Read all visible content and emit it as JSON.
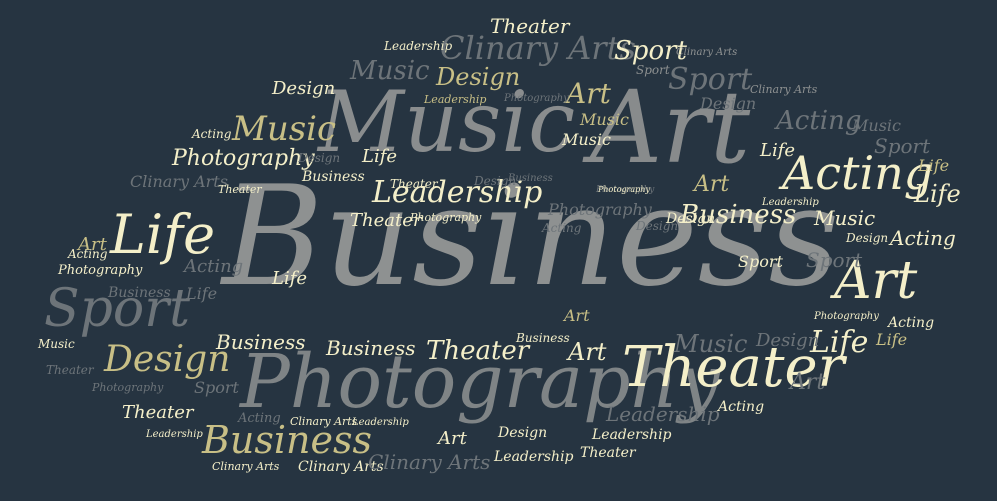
{
  "colors": {
    "background": "#263441",
    "cream": "#f4efc9",
    "khaki": "#c8bf86",
    "gray": "#8e9191",
    "darkgray": "#6d7479",
    "tan": "#a59f7c"
  },
  "words": {
    "business_main": "Business",
    "music_big": "Music",
    "art_big": "Art",
    "photography_big": "Photography",
    "theater_big": "Theater",
    "acting_big": "Acting",
    "life_big": "Life",
    "sport_big": "Sport",
    "art_right": "Art",
    "business_bottom": "Business",
    "design_left": "Design",
    "music_left": "Music",
    "photography_left": "Photography",
    "leadership_mid": "Leadership",
    "clinary_top": "Clinary Arts",
    "sport_top": "Sport",
    "sport_top2": "Sport",
    "theater_top": "Theater",
    "design_top": "Design",
    "music_top": "Music",
    "design_top2": "Design",
    "art_top": "Art",
    "music_top2": "Music",
    "acting_right_top": "Acting",
    "music_right": "Music",
    "sport_right": "Sport",
    "life_right": "Life",
    "life_right2": "Life",
    "business_right": "Business",
    "music_right2": "Music",
    "acting_right2": "Acting",
    "design_right": "Design",
    "sport_right2": "Sport",
    "sport_right3": "Sport",
    "life_right3": "Life",
    "acting_right3": "Acting",
    "life_right4": "Life",
    "design_right2": "Design",
    "music_lower": "Music",
    "art_lower": "Art",
    "acting_lower": "Acting",
    "leadership_lower": "Leadership",
    "leadership_lower2": "Leadership",
    "design_lower": "Design",
    "leadership_lower3": "Leadership",
    "theater_lower": "Theater",
    "clinary_lower": "Clinary Arts",
    "clinary_lower2": "Clinary Arts",
    "clinary_lower3": "Clinary Arts",
    "art_bottom": "Art",
    "theater_left": "Theater",
    "design_left2": "Design",
    "sport_left2": "Sport",
    "acting_left": "Acting",
    "leadership_left": "Leadership",
    "acting_left2": "Acting",
    "theater_left2": "Theater",
    "music_left2": "Music",
    "photography_left2": "Photography",
    "business_left": "Business",
    "life_left": "Life",
    "acting_left3": "Acting",
    "photography_left3": "Photography",
    "art_left": "Art",
    "clinary_left": "Clinary Arts",
    "theater_left3": "Theater",
    "acting_left4": "Acting",
    "leadership_top": "Leadership",
    "design_top3": "Design",
    "leadership_top2": "Leadership",
    "photography_top": "Photography",
    "music_mid": "Music",
    "photography_mid": "Photography",
    "design_mid": "Design",
    "theater_mid": "Theater",
    "leadership_mid2": "Leadership",
    "photography_mid2": "Photography",
    "business_mid": "Business",
    "theater_mid2": "Theater",
    "business_mid2": "Business",
    "life_mid": "Life",
    "business_mid3": "Business",
    "business_mid4": "Business",
    "art_mid": "Art",
    "art_mid2": "Art",
    "business_mid5": "Business",
    "theater_mid3": "Theater",
    "art_mid3": "Art",
    "business_mid6": "Business",
    "life_mid2": "Life",
    "design_mid2": "Design",
    "clinary_right": "Clinary Arts",
    "photography_right": "Photography",
    "leadership_right": "Leadership",
    "design_right3": "Design",
    "photography_right2": "Photography",
    "acting_right4": "Acting",
    "music_right3": "Music"
  }
}
